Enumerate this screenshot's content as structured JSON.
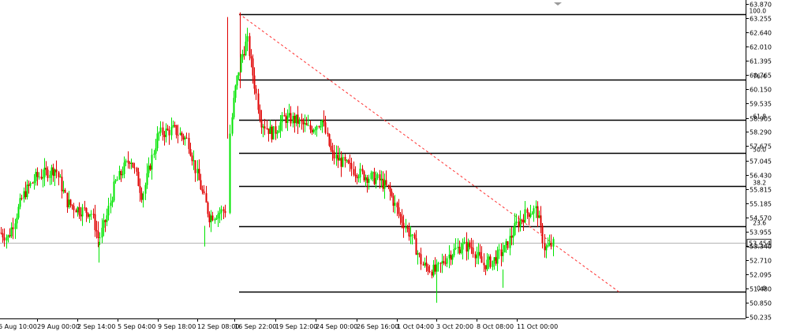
{
  "chart_data": {
    "type": "candlestick",
    "y_axis": {
      "position": "right",
      "range": [
        50.236,
        64.18
      ],
      "tick_labels": [
        "63.870",
        "63.255",
        "62.640",
        "62.010",
        "61.395",
        "60.765",
        "60.150",
        "59.535",
        "58.905",
        "58.290",
        "57.675",
        "57.045",
        "56.430",
        "55.815",
        "55.185",
        "54.570",
        "53.955",
        "53.340",
        "52.710",
        "52.095",
        "51.480",
        "50.850",
        "50.235"
      ]
    },
    "x_axis": {
      "tick_labels": [
        "6 Aug 10:00",
        "29 Aug 00:00",
        "2 Sep 14:00",
        "5 Sep 04:00",
        "9 Sep 18:00",
        "12 Sep 08:00",
        "16 Sep 22:00",
        "19 Sep 12:00",
        "24 Sep 00:00",
        "26 Sep 16:00",
        "1 Oct 04:00",
        "3 Oct 20:00",
        "8 Oct 08:00",
        "11 Oct 00:00"
      ]
    },
    "current_price": {
      "value": 53.454,
      "label": "53.454"
    },
    "fibonacci": {
      "levels": [
        {
          "label": "100.0",
          "price": 63.44
        },
        {
          "label": "76.4",
          "price": 60.58
        },
        {
          "label": "61.8",
          "price": 58.81
        },
        {
          "label": "50.0",
          "price": 57.38
        },
        {
          "label": "38.2",
          "price": 55.95
        },
        {
          "label": "23.6",
          "price": 54.18
        },
        {
          "label": "0.0",
          "price": 51.32
        }
      ]
    },
    "trend_line": {
      "from_price": 63.44,
      "to_price": 51.32
    },
    "colors": {
      "bull": "#00e400",
      "bear": "#e00000",
      "fib_line": "#000000",
      "trend_line": "#ff3030",
      "current_price_line": "#b4b4b4",
      "axis": "#000000",
      "text": "#000000"
    }
  }
}
